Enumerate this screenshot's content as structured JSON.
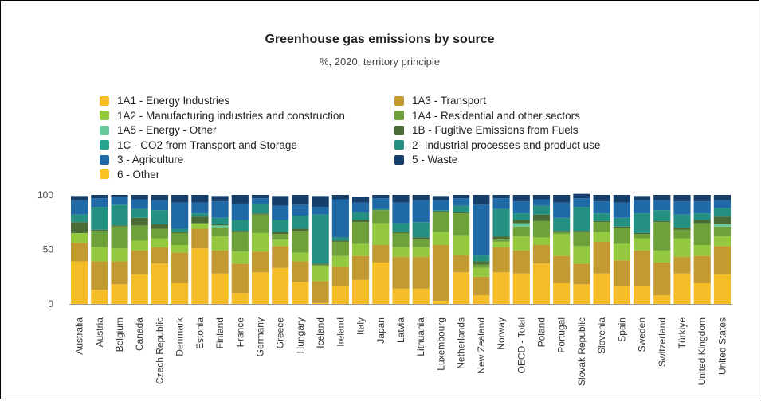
{
  "chart_data": {
    "type": "bar",
    "stacked": true,
    "title": "Greenhouse gas emissions by source",
    "subtitle": "%, 2020, territory principle",
    "ylim": [
      0,
      100
    ],
    "yticks": [
      0,
      50,
      100
    ],
    "legend_position": "top",
    "categories": [
      "Australia",
      "Austria",
      "Belgium",
      "Canada",
      "Czech Republic",
      "Denmark",
      "Estonia",
      "Finland",
      "France",
      "Germany",
      "Greece",
      "Hungary",
      "Iceland",
      "Ireland",
      "Italy",
      "Japan",
      "Latvia",
      "Lithuania",
      "Luxembourg",
      "Netherlands",
      "New Zealand",
      "Norway",
      "OECD - Total",
      "Poland",
      "Portugal",
      "Slovak Republic",
      "Slovenia",
      "Spain",
      "Sweden",
      "Switzerland",
      "Türkiye",
      "United Kingdom",
      "United States"
    ],
    "series": [
      {
        "name": "1A1 - Energy Industries",
        "color": "#f5bd27",
        "values": [
          39,
          13,
          18,
          27,
          37,
          19,
          51,
          28,
          10,
          29,
          33,
          20,
          1,
          16,
          22,
          38,
          14,
          14,
          3,
          29,
          8,
          29,
          28,
          37,
          19,
          18,
          28,
          16,
          16,
          8,
          28,
          19,
          27
        ]
      },
      {
        "name": "1A3 - Transport",
        "color": "#c39a31",
        "values": [
          17,
          26,
          21,
          22,
          15,
          28,
          18,
          21,
          27,
          19,
          20,
          19,
          20,
          18,
          22,
          16,
          29,
          29,
          51,
          16,
          17,
          23,
          21,
          17,
          25,
          19,
          29,
          24,
          33,
          30,
          15,
          25,
          26
        ]
      },
      {
        "name": "1A2 - Manufacturing industries and construction",
        "color": "#93c83f",
        "values": [
          9,
          13,
          12,
          9,
          8,
          7,
          5,
          13,
          11,
          17,
          6,
          8,
          14,
          10,
          11,
          20,
          9,
          9,
          12,
          18,
          8,
          5,
          13,
          7,
          20,
          16,
          9,
          15,
          11,
          11,
          17,
          10,
          9
        ]
      },
      {
        "name": "1A4 - Residential and other sectors",
        "color": "#6ea13a",
        "values": [
          0,
          15,
          20,
          14,
          9,
          11,
          0,
          8,
          18,
          17,
          5,
          20,
          1,
          13,
          20,
          12,
          13,
          7,
          18,
          20,
          3,
          2,
          9,
          15,
          2,
          13,
          9,
          15,
          4,
          26,
          8,
          20,
          9
        ]
      },
      {
        "name": "1A5 - Energy - Other",
        "color": "#68c99a",
        "values": [
          0,
          0,
          0,
          0,
          0,
          0,
          0,
          2,
          0,
          0,
          0,
          0,
          0,
          0,
          0,
          0,
          0,
          0,
          0,
          0,
          0,
          0,
          3,
          0,
          0,
          0,
          0,
          0,
          0,
          0,
          0,
          0,
          2
        ]
      },
      {
        "name": "1B - Fugitive Emissions from Fuels",
        "color": "#4a6b33",
        "values": [
          10,
          1,
          1,
          7,
          4,
          1,
          6,
          1,
          1,
          1,
          2,
          2,
          1,
          1,
          2,
          0,
          1,
          2,
          1,
          1,
          3,
          3,
          3,
          6,
          1,
          1,
          1,
          1,
          1,
          1,
          2,
          3,
          7
        ]
      },
      {
        "name": "1C - CO2 from Transport and Storage",
        "color": "#25a48e",
        "values": [
          0,
          0,
          0,
          0,
          0,
          0,
          0,
          0,
          0,
          0,
          0,
          0,
          0,
          0,
          0,
          0,
          0,
          0,
          0,
          0,
          0,
          0,
          0,
          0,
          0,
          0,
          0,
          0,
          0,
          0,
          0,
          0,
          0
        ]
      },
      {
        "name": "2- Industrial processes and product use",
        "color": "#249081",
        "values": [
          7,
          21,
          19,
          8,
          13,
          3,
          3,
          6,
          10,
          9,
          11,
          12,
          45,
          3,
          7,
          1,
          8,
          14,
          1,
          6,
          6,
          25,
          6,
          8,
          12,
          22,
          7,
          8,
          18,
          10,
          12,
          6,
          8
        ]
      },
      {
        "name": "3 - Agriculture",
        "color": "#1f6aa6",
        "values": [
          13,
          8,
          7,
          9,
          9,
          24,
          10,
          15,
          15,
          5,
          13,
          10,
          7,
          35,
          9,
          10,
          19,
          20,
          9,
          7,
          46,
          10,
          11,
          6,
          14,
          8,
          11,
          14,
          12,
          9,
          12,
          11,
          7
        ]
      },
      {
        "name": "5 - Waste",
        "color": "#163e6b",
        "values": [
          4,
          3,
          2,
          4,
          5,
          7,
          7,
          5,
          8,
          3,
          9,
          9,
          10,
          4,
          5,
          3,
          7,
          5,
          4,
          3,
          9,
          3,
          6,
          4,
          7,
          4,
          6,
          7,
          4,
          5,
          6,
          6,
          5
        ]
      },
      {
        "name": "6 - Other",
        "color": "#fbc425",
        "values": [
          0,
          0,
          0,
          0,
          0,
          0,
          0,
          0,
          0,
          0,
          0,
          0,
          0,
          0,
          0,
          0,
          0,
          0,
          0,
          0,
          0,
          0,
          0,
          0,
          0,
          0,
          0,
          0,
          0,
          0,
          0,
          0,
          0
        ]
      }
    ]
  },
  "legend": {
    "left": [
      {
        "label": "1A1 - Energy Industries",
        "color": "#f5bd27"
      },
      {
        "label": "1A2 - Manufacturing industries and construction",
        "color": "#93c83f"
      },
      {
        "label": "1A5 - Energy - Other",
        "color": "#68c99a"
      },
      {
        "label": "1C - CO2 from Transport and Storage",
        "color": "#25a48e"
      },
      {
        "label": "3 - Agriculture",
        "color": "#1f6aa6"
      },
      {
        "label": "6 - Other",
        "color": "#fbc425"
      }
    ],
    "right": [
      {
        "label": "1A3 - Transport",
        "color": "#c39a31"
      },
      {
        "label": "1A4 - Residential and other sectors",
        "color": "#6ea13a"
      },
      {
        "label": "1B - Fugitive Emissions from Fuels",
        "color": "#4a6b33"
      },
      {
        "label": "2- Industrial processes and product use",
        "color": "#249081"
      },
      {
        "label": "5 - Waste",
        "color": "#163e6b"
      }
    ]
  }
}
